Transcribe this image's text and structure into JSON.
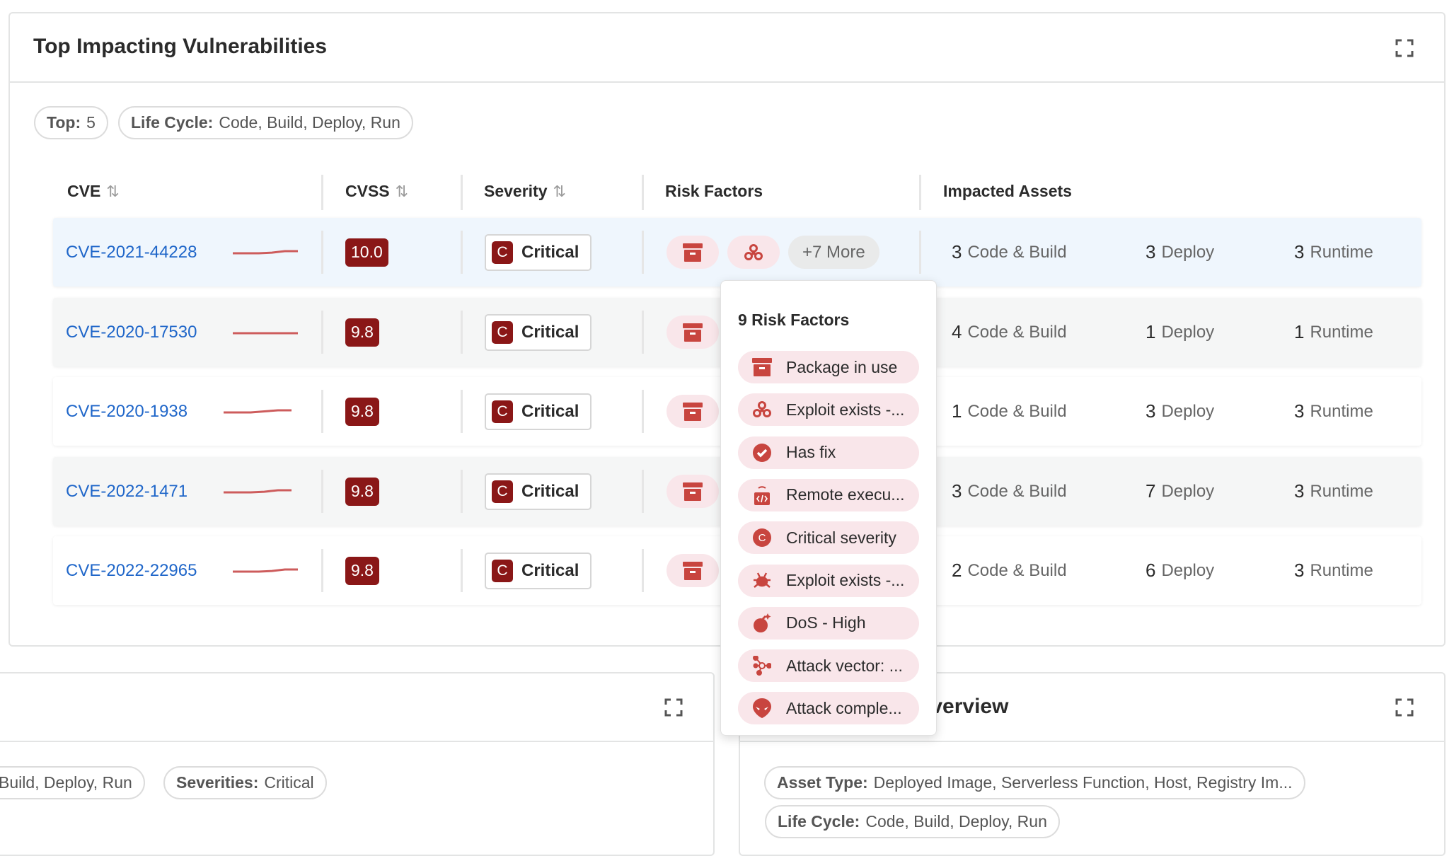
{
  "panel": {
    "title": "Top Impacting Vulnerabilities",
    "filters": [
      {
        "label": "Top:",
        "value": "5"
      },
      {
        "label": "Life Cycle:",
        "value": "Code, Build, Deploy, Run"
      }
    ],
    "columns": [
      {
        "label": "CVE",
        "sortable": true
      },
      {
        "label": "CVSS",
        "sortable": true
      },
      {
        "label": "Severity",
        "sortable": true
      },
      {
        "label": "Risk Factors",
        "sortable": false
      },
      {
        "label": "Impacted Assets",
        "sortable": false
      }
    ],
    "sort_glyph": "⇅",
    "rows": [
      {
        "cve": "CVE-2021-44228",
        "trend": [
          0,
          0,
          0,
          0.3,
          1,
          1
        ],
        "cvss": "10.0",
        "severity": "Critical",
        "sev_letter": "C",
        "risk_icons": [
          "package-icon",
          "biohazard-icon"
        ],
        "more": "+7 More",
        "code_build": "3",
        "deploy": "3",
        "runtime": "3"
      },
      {
        "cve": "CVE-2020-17530",
        "trend": [
          0,
          0,
          0,
          0,
          0,
          0
        ],
        "cvss": "9.8",
        "severity": "Critical",
        "sev_letter": "C",
        "risk_icons": [
          "package-icon"
        ],
        "code_build": "4",
        "deploy": "1",
        "runtime": "1"
      },
      {
        "cve": "CVE-2020-1938",
        "trend": [
          0,
          0,
          0,
          0.5,
          1,
          1
        ],
        "cvss": "9.8",
        "severity": "Critical",
        "sev_letter": "C",
        "risk_icons": [
          "package-icon"
        ],
        "code_build": "1",
        "deploy": "3",
        "runtime": "3"
      },
      {
        "cve": "CVE-2022-1471",
        "trend": [
          0,
          0,
          0,
          0.3,
          1,
          1
        ],
        "cvss": "9.8",
        "severity": "Critical",
        "sev_letter": "C",
        "risk_icons": [
          "package-icon"
        ],
        "code_build": "3",
        "deploy": "7",
        "runtime": "3"
      },
      {
        "cve": "CVE-2022-22965",
        "trend": [
          0,
          0,
          0,
          0.3,
          1,
          1
        ],
        "cvss": "9.8",
        "severity": "Critical",
        "sev_letter": "C",
        "risk_icons": [
          "package-icon"
        ],
        "code_build": "2",
        "deploy": "6",
        "runtime": "3"
      }
    ],
    "asset_labels": {
      "code_build": "Code & Build",
      "deploy": "Deploy",
      "runtime": "Runtime"
    }
  },
  "popup": {
    "title": "9 Risk Factors",
    "items": [
      {
        "icon": "package-icon",
        "label": "Package in use"
      },
      {
        "icon": "biohazard-icon",
        "label": "Exploit exists -..."
      },
      {
        "icon": "check-circle-icon",
        "label": "Has fix"
      },
      {
        "icon": "remote-execution-icon",
        "label": "Remote execu..."
      },
      {
        "icon": "critical-c-icon",
        "label": "Critical severity"
      },
      {
        "icon": "bug-icon",
        "label": "Exploit exists -..."
      },
      {
        "icon": "bomb-icon",
        "label": "DoS - High"
      },
      {
        "icon": "network-icon",
        "label": "Attack vector: ..."
      },
      {
        "icon": "alien-icon",
        "label": "Attack comple..."
      }
    ]
  },
  "bottom_left": {
    "filters": [
      {
        "label": "",
        "value": "Build, Deploy, Run"
      },
      {
        "label": "Severities:",
        "value": "Critical"
      }
    ]
  },
  "bottom_right": {
    "title": "Overview",
    "filters": [
      {
        "label": "Asset Type:",
        "value": "Deployed Image, Serverless Function, Host, Registry Im..."
      },
      {
        "label": "Life Cycle:",
        "value": "Code, Build, Deploy, Run"
      }
    ]
  },
  "colors": {
    "link": "#1f66c9",
    "critical": "#8a1717",
    "risk_icon": "#c8453f",
    "risk_pill": "#f9e6ea",
    "row_hover": "#eff6fd",
    "row_alt": "#f5f6f6"
  }
}
